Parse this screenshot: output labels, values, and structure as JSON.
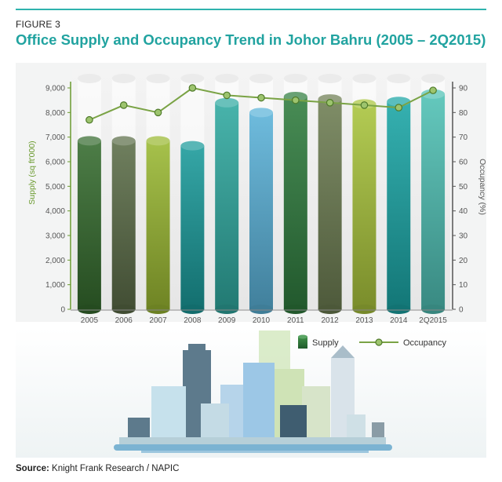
{
  "figure": {
    "label": "FIGURE 3",
    "title": "Office Supply and Occupancy Trend in Johor Bahru (2005 – 2Q2015)"
  },
  "source": {
    "prefix": "Source:",
    "text": "Knight Frank Research / NAPIC"
  },
  "colors": {
    "accent": "#21a3a0",
    "left_axis": "#6a9a2e",
    "right_axis": "#555555",
    "occupancy_line": "#7aa345",
    "bar_colors": [
      "#356b2e",
      "#5b6d48",
      "#9ab832",
      "#1a9a9a",
      "#2fa9a0",
      "#5ab2d8",
      "#2f7c3e",
      "#6d7d52",
      "#a9c43c",
      "#1aa5a5",
      "#4fc0b4"
    ]
  },
  "chart_data": {
    "type": "bar",
    "categories": [
      "2005",
      "2006",
      "2007",
      "2008",
      "2009",
      "2010",
      "2011",
      "2012",
      "2013",
      "2014",
      "2Q2015"
    ],
    "series": [
      {
        "name": "Supply",
        "type": "bar",
        "axis": "left",
        "values": [
          6850,
          6850,
          6850,
          6650,
          8400,
          8000,
          8650,
          8550,
          8350,
          8450,
          8750
        ]
      },
      {
        "name": "Occupancy",
        "type": "line",
        "axis": "right",
        "values": [
          77,
          83,
          80,
          90,
          87,
          86,
          85,
          84,
          83,
          82,
          89
        ]
      }
    ],
    "ylabel": "Supply (sq ft'000)",
    "y2label": "Occupancy (%)",
    "ylim": [
      0,
      9000
    ],
    "y2lim": [
      0,
      90
    ],
    "yticks": [
      "0",
      "1,000",
      "2,000",
      "3,000",
      "4,000",
      "5,000",
      "6,000",
      "7,000",
      "8,000",
      "9,000"
    ],
    "y2ticks": [
      "0",
      "10",
      "20",
      "30",
      "40",
      "50",
      "60",
      "70",
      "80",
      "90"
    ],
    "legend": {
      "position": "bottom-right",
      "items": [
        "Supply",
        "Occupancy"
      ]
    },
    "grid": false
  }
}
